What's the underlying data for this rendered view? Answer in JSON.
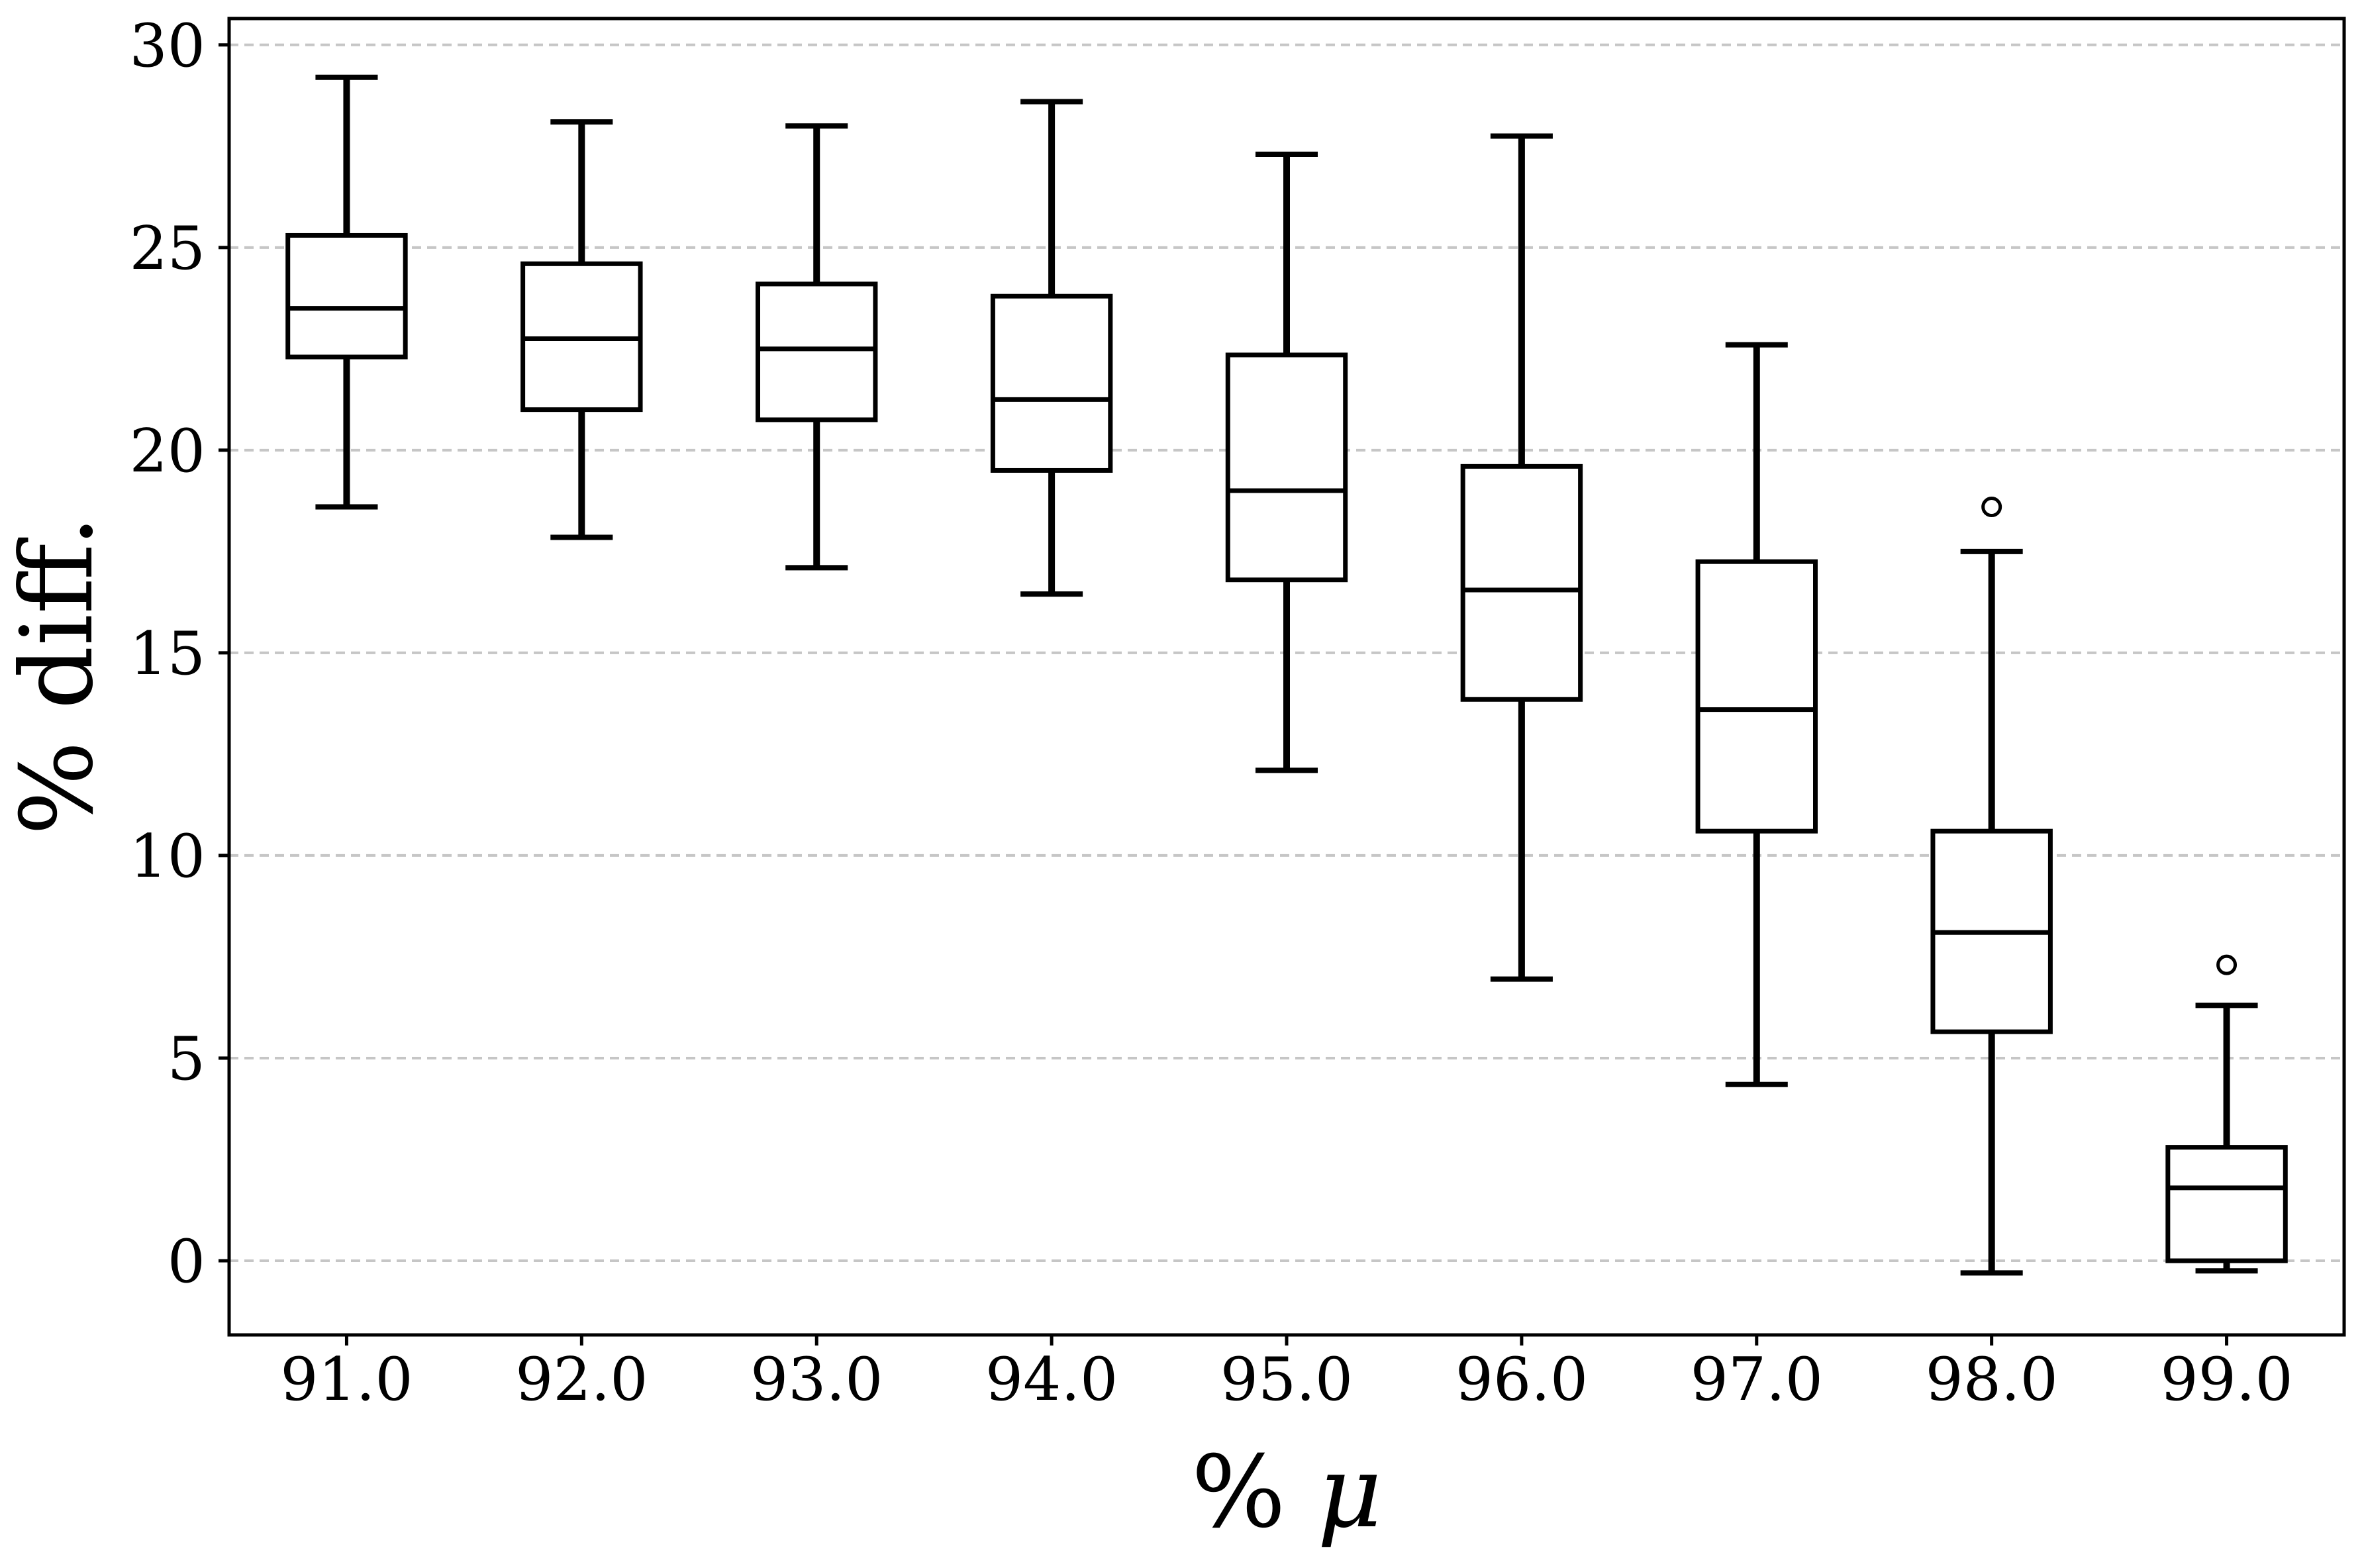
{
  "figure": {
    "background": "#ffffff"
  },
  "chart_data": {
    "type": "boxplot",
    "title": "",
    "xlabel": "% μ",
    "xlabel_prefix": "% ",
    "xlabel_symbol": "μ",
    "ylabel": "% diff.",
    "categories": [
      "91.0",
      "92.0",
      "93.0",
      "94.0",
      "95.0",
      "96.0",
      "97.0",
      "98.0",
      "99.0"
    ],
    "positions": [
      91,
      92,
      93,
      94,
      95,
      96,
      97,
      98,
      99
    ],
    "yticks": [
      0,
      5,
      10,
      15,
      20,
      25,
      30
    ],
    "ytick_labels": [
      "0",
      "5",
      "10",
      "15",
      "20",
      "25",
      "30"
    ],
    "xlim": [
      90.5,
      99.5
    ],
    "ylim": [
      -1.83,
      30.65
    ],
    "grid": {
      "axis": "y",
      "linestyle": "dashed",
      "color": "#c6c6c6",
      "on": true
    },
    "legend": null,
    "box_width_units": 0.5,
    "cap_width_units": 0.265,
    "colors": {
      "box_edge": "#000000",
      "box_fill": "#ffffff",
      "median": "#000000",
      "whisker": "#000000",
      "flier_edge": "#000000",
      "spine": "#000000",
      "grid": "#c6c6c6"
    },
    "series": [
      {
        "label": "91.0",
        "position": 91,
        "whislo": 18.6,
        "q1": 22.3,
        "med": 23.5,
        "q3": 25.3,
        "whishi": 29.2,
        "fliers": []
      },
      {
        "label": "92.0",
        "position": 92,
        "whislo": 17.85,
        "q1": 21.0,
        "med": 22.75,
        "q3": 24.6,
        "whishi": 28.1,
        "fliers": []
      },
      {
        "label": "93.0",
        "position": 93,
        "whislo": 17.1,
        "q1": 20.75,
        "med": 22.5,
        "q3": 24.1,
        "whishi": 28.0,
        "fliers": []
      },
      {
        "label": "94.0",
        "position": 94,
        "whislo": 16.45,
        "q1": 19.5,
        "med": 21.25,
        "q3": 23.8,
        "whishi": 28.6,
        "fliers": []
      },
      {
        "label": "95.0",
        "position": 95,
        "whislo": 12.1,
        "q1": 16.8,
        "med": 19.0,
        "q3": 22.35,
        "whishi": 27.3,
        "fliers": []
      },
      {
        "label": "96.0",
        "position": 96,
        "whislo": 6.95,
        "q1": 13.85,
        "med": 16.55,
        "q3": 19.6,
        "whishi": 27.75,
        "fliers": []
      },
      {
        "label": "97.0",
        "position": 97,
        "whislo": 4.35,
        "q1": 10.6,
        "med": 13.6,
        "q3": 17.25,
        "whishi": 22.6,
        "fliers": []
      },
      {
        "label": "98.0",
        "position": 98,
        "whislo": -0.3,
        "q1": 5.65,
        "med": 8.1,
        "q3": 10.6,
        "whishi": 17.5,
        "fliers": [
          18.6
        ]
      },
      {
        "label": "99.0",
        "position": 99,
        "whislo": -0.25,
        "q1": 0.0,
        "med": 1.8,
        "q3": 2.8,
        "whishi": 6.3,
        "fliers": [
          7.3
        ]
      }
    ]
  }
}
